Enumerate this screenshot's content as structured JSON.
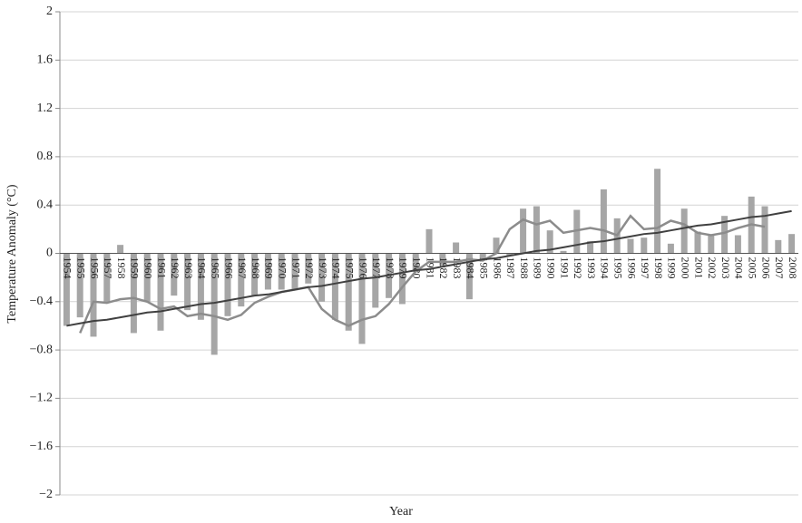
{
  "chart_data": {
    "type": "bar",
    "x_label": "Year",
    "y_label": "Temperature Anomaly (°C)",
    "categories": [
      "1954",
      "1955",
      "1956",
      "1957",
      "1958",
      "1959",
      "1960",
      "1961",
      "1962",
      "1963",
      "1964",
      "1965",
      "1966",
      "1967",
      "1968",
      "1969",
      "1970",
      "1971",
      "1972",
      "1973",
      "1974",
      "1975",
      "1976",
      "1977",
      "1978",
      "1979",
      "1980",
      "1981",
      "1982",
      "1983",
      "1984",
      "1985",
      "1986",
      "1987",
      "1988",
      "1989",
      "1990",
      "1991",
      "1992",
      "1993",
      "1994",
      "1995",
      "1996",
      "1997",
      "1998",
      "1999",
      "2000",
      "2001",
      "2002",
      "2003",
      "2004",
      "2005",
      "2006",
      "2007",
      "2008"
    ],
    "series": [
      {
        "type": "bar",
        "color": "#a6a6a6",
        "values": [
          -0.6,
          -0.53,
          -0.69,
          -0.41,
          0.07,
          -0.66,
          -0.4,
          -0.64,
          -0.35,
          -0.47,
          -0.55,
          -0.84,
          -0.52,
          -0.44,
          -0.35,
          -0.3,
          -0.3,
          -0.3,
          -0.25,
          -0.4,
          -0.55,
          -0.64,
          -0.75,
          -0.45,
          -0.37,
          -0.42,
          -0.15,
          0.2,
          -0.1,
          0.09,
          -0.38,
          -0.05,
          0.13,
          -0.02,
          0.37,
          0.39,
          0.19,
          0.02,
          0.36,
          0.1,
          0.53,
          0.29,
          0.12,
          0.13,
          0.7,
          0.08,
          0.37,
          0.18,
          0.15,
          0.31,
          0.15,
          0.47,
          0.39,
          0.11,
          0.16
        ]
      },
      {
        "type": "line",
        "color": "#8c8c8c",
        "width": 2.5,
        "values": [
          null,
          -0.66,
          -0.4,
          -0.41,
          -0.38,
          -0.37,
          -0.4,
          -0.46,
          -0.44,
          -0.52,
          -0.5,
          -0.52,
          -0.55,
          -0.51,
          -0.41,
          -0.36,
          -0.32,
          -0.3,
          -0.28,
          -0.46,
          -0.55,
          -0.6,
          -0.55,
          -0.52,
          -0.42,
          -0.28,
          -0.15,
          -0.07,
          -0.07,
          -0.07,
          -0.05,
          -0.06,
          0.0,
          0.2,
          0.28,
          0.24,
          0.27,
          0.17,
          0.19,
          0.21,
          0.19,
          0.15,
          0.31,
          0.2,
          0.21,
          0.27,
          0.24,
          0.17,
          0.15,
          0.17,
          0.21,
          0.24,
          0.22,
          null,
          null
        ]
      },
      {
        "type": "line",
        "color": "#404040",
        "width": 2,
        "values": [
          -0.6,
          -0.58,
          -0.56,
          -0.55,
          -0.53,
          -0.51,
          -0.49,
          -0.48,
          -0.46,
          -0.44,
          -0.42,
          -0.41,
          -0.39,
          -0.37,
          -0.35,
          -0.34,
          -0.32,
          -0.3,
          -0.28,
          -0.27,
          -0.25,
          -0.23,
          -0.21,
          -0.2,
          -0.18,
          -0.16,
          -0.14,
          -0.13,
          -0.11,
          -0.09,
          -0.07,
          -0.05,
          -0.04,
          -0.02,
          0.0,
          0.02,
          0.03,
          0.05,
          0.07,
          0.09,
          0.1,
          0.12,
          0.14,
          0.16,
          0.17,
          0.19,
          0.21,
          0.23,
          0.24,
          0.26,
          0.28,
          0.3,
          0.31,
          0.33,
          0.35
        ]
      }
    ],
    "ylim": [
      -2,
      2
    ],
    "yticks": [
      {
        "value": -2,
        "label": "−2"
      },
      {
        "value": -1.6,
        "label": "−1.6"
      },
      {
        "value": -1.2,
        "label": "−1.2"
      },
      {
        "value": -0.8,
        "label": "−0.8"
      },
      {
        "value": -0.4,
        "label": "−0.4"
      },
      0,
      0.4,
      0.8,
      1.2,
      1.6,
      2
    ],
    "grid": true
  }
}
